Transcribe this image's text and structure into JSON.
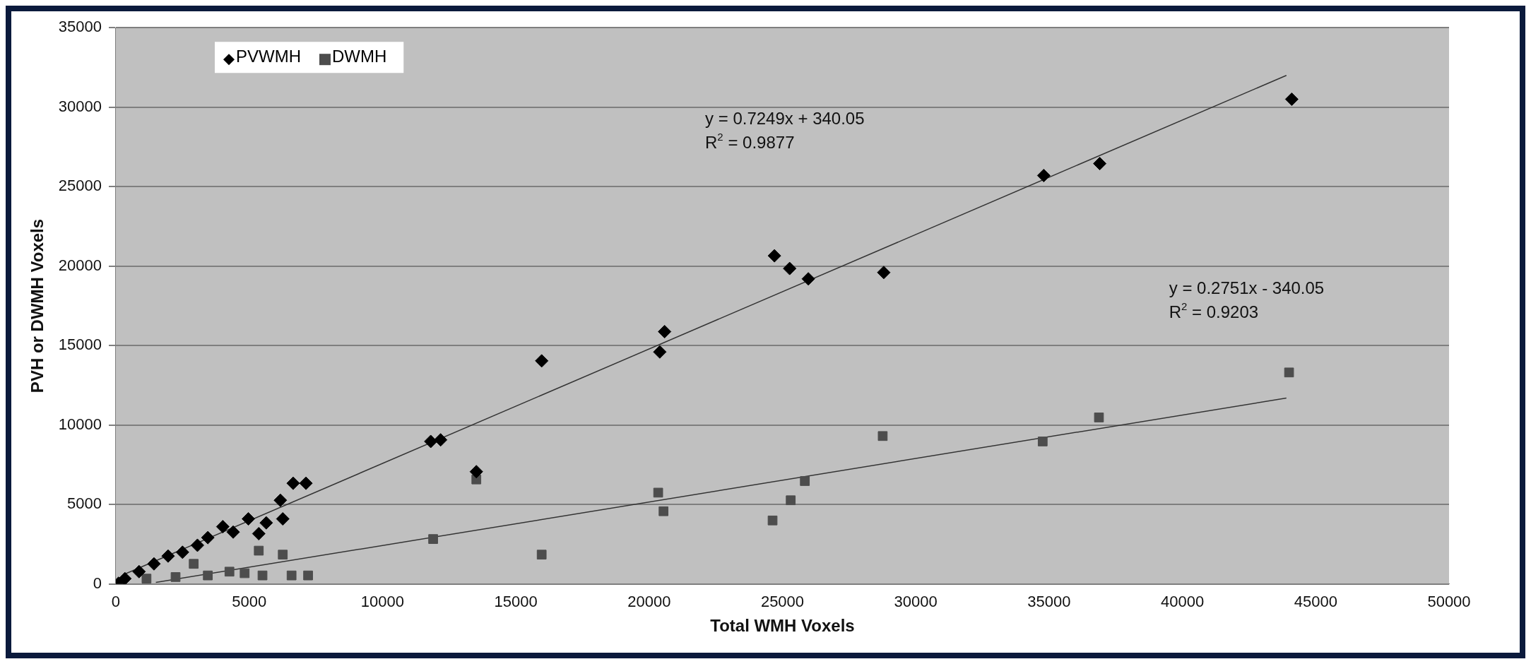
{
  "chart_data": {
    "type": "scatter",
    "xlabel": "Total WMH Voxels",
    "ylabel": "PVH or DWMH Voxels",
    "xlim": [
      0,
      50000
    ],
    "xticks": [
      0,
      5000,
      10000,
      15000,
      20000,
      25000,
      30000,
      35000,
      40000,
      45000,
      50000
    ],
    "ylim": [
      0,
      35000
    ],
    "yticks": [
      0,
      5000,
      10000,
      15000,
      20000,
      25000,
      30000,
      35000
    ],
    "grid": "y",
    "legend": "top left",
    "series": [
      {
        "name": "PVWMH",
        "color": "#000000",
        "marker": "diamond",
        "x": [
          100,
          340,
          870,
          1430,
          1960,
          2500,
          3060,
          3450,
          4010,
          4400,
          4970,
          5360,
          5640,
          6170,
          6260,
          6650,
          7130,
          11810,
          12180,
          13520,
          15970,
          20400,
          20580,
          24700,
          25270,
          25970,
          28800,
          34800,
          36900,
          44100
        ],
        "values": [
          50,
          340,
          780,
          1270,
          1760,
          2000,
          2440,
          2920,
          3610,
          3270,
          4100,
          3170,
          3850,
          5270,
          4100,
          6340,
          6340,
          8970,
          9070,
          7070,
          14040,
          14600,
          15880,
          20650,
          19850,
          19200,
          19600,
          25700,
          26450,
          30500
        ]
      },
      {
        "name": "DWMH",
        "color": "#4d4d4d",
        "marker": "square",
        "x": [
          1150,
          2240,
          2920,
          3450,
          4260,
          4830,
          5360,
          5500,
          6260,
          6590,
          7210,
          11900,
          13520,
          15970,
          20340,
          20540,
          24630,
          25310,
          25840,
          28760,
          34760,
          36870,
          44000
        ],
        "values": [
          340,
          440,
          1270,
          540,
          780,
          680,
          2100,
          540,
          1850,
          540,
          540,
          2830,
          6580,
          1850,
          5750,
          4580,
          4000,
          5270,
          6480,
          9310,
          8970,
          10480,
          13310
        ]
      },
      {
        "type": "line",
        "color": "#333333",
        "marker": "none",
        "x": [
          300,
          43900
        ],
        "values": [
          600,
          32000
        ]
      },
      {
        "type": "line",
        "color": "#333333",
        "marker": "none",
        "x": [
          1500,
          43900
        ],
        "values": [
          100,
          11700
        ]
      }
    ],
    "annotations": [
      "y = 0.7249x + 340.05",
      "R$^{2}$ = 0.9877",
      "y = 0.2751x - 340.05",
      "R$^{2}$ = 0.9203"
    ]
  }
}
